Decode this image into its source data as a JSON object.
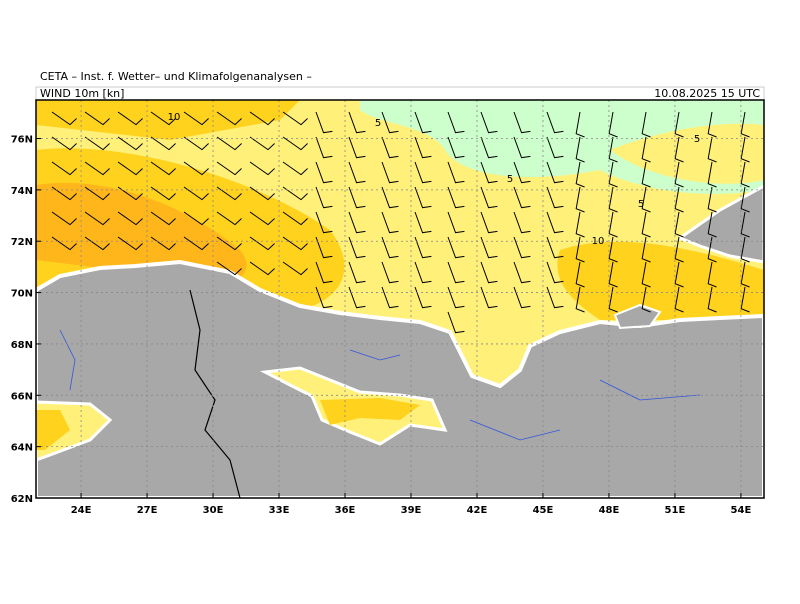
{
  "header": {
    "institute": "CETA – Inst. f. Wetter– und Klimafolgenanalysen –",
    "product": "WIND 10m [kn]",
    "valid_time": "10.08.2025 15 UTC"
  },
  "map": {
    "lat_ticks": [
      {
        "value": 62,
        "label": "62N"
      },
      {
        "value": 64,
        "label": "64N"
      },
      {
        "value": 66,
        "label": "66N"
      },
      {
        "value": 68,
        "label": "68N"
      },
      {
        "value": 70,
        "label": "70N"
      },
      {
        "value": 72,
        "label": "72N"
      },
      {
        "value": 74,
        "label": "74N"
      },
      {
        "value": 76,
        "label": "76N"
      }
    ],
    "lon_ticks": [
      {
        "value": 24,
        "label": "24E"
      },
      {
        "value": 27,
        "label": "27E"
      },
      {
        "value": 30,
        "label": "30E"
      },
      {
        "value": 33,
        "label": "33E"
      },
      {
        "value": 36,
        "label": "36E"
      },
      {
        "value": 39,
        "label": "39E"
      },
      {
        "value": 42,
        "label": "42E"
      },
      {
        "value": 45,
        "label": "45E"
      },
      {
        "value": 48,
        "label": "48E"
      },
      {
        "value": 51,
        "label": "51E"
      },
      {
        "value": 54,
        "label": "54E"
      }
    ],
    "contour_labels": [
      "10",
      "5",
      "5",
      "5",
      "5",
      "10"
    ]
  }
}
